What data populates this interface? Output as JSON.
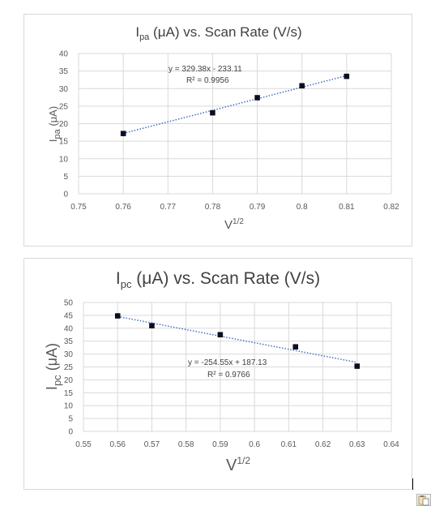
{
  "chart_data": [
    {
      "type": "scatter",
      "title_main": "I",
      "title_sub": "pa",
      "title_rest": " (μA) vs. Scan Rate (V/s)",
      "ylabel_main": "I",
      "ylabel_sub": "pa",
      "ylabel_rest": " (μA)",
      "xlabel_main": "V",
      "xlabel_sup": "1/2",
      "xlim": [
        0.75,
        0.82
      ],
      "ylim": [
        0,
        40
      ],
      "xticks": [
        "0.75",
        "0.76",
        "0.77",
        "0.78",
        "0.79",
        "0.8",
        "0.81",
        "0.82"
      ],
      "yticks": [
        "0",
        "5",
        "10",
        "15",
        "20",
        "25",
        "30",
        "35",
        "40"
      ],
      "grid": true,
      "series": [
        {
          "x": [
            0.76,
            0.78,
            0.79,
            0.8,
            0.81
          ],
          "y": [
            17.2,
            23.1,
            27.4,
            30.8,
            33.5
          ],
          "marker_color": "#0d0d26",
          "trendline": {
            "slope": 329.38,
            "intercept": -233.11,
            "color": "#4472c4"
          }
        }
      ],
      "equation": "y = 329.38x - 233.11",
      "r2": "R² = 0.9956"
    },
    {
      "type": "scatter",
      "title_main": "I",
      "title_sub": "pc",
      "title_rest": " (μA) vs. Scan Rate (V/s)",
      "ylabel_main": "I",
      "ylabel_sub": "pc",
      "ylabel_rest": " (μA)",
      "xlabel_main": "V",
      "xlabel_sup": "1/2",
      "xlim": [
        0.55,
        0.64
      ],
      "ylim": [
        0,
        50
      ],
      "xticks": [
        "0.55",
        "0.56",
        "0.57",
        "0.58",
        "0.59",
        "0.6",
        "0.61",
        "0.62",
        "0.63",
        "0.64"
      ],
      "yticks": [
        "0",
        "5",
        "10",
        "15",
        "20",
        "25",
        "30",
        "35",
        "40",
        "45",
        "50"
      ],
      "grid": true,
      "series": [
        {
          "x": [
            0.56,
            0.57,
            0.59,
            0.612,
            0.63
          ],
          "y": [
            44.8,
            41.0,
            37.5,
            32.8,
            25.3
          ],
          "marker_color": "#0d0d26",
          "trendline": {
            "slope": -254.55,
            "intercept": 187.13,
            "color": "#4472c4"
          }
        }
      ],
      "equation": "y = -254.55x + 187.13",
      "r2": "R² = 0.9766"
    }
  ]
}
